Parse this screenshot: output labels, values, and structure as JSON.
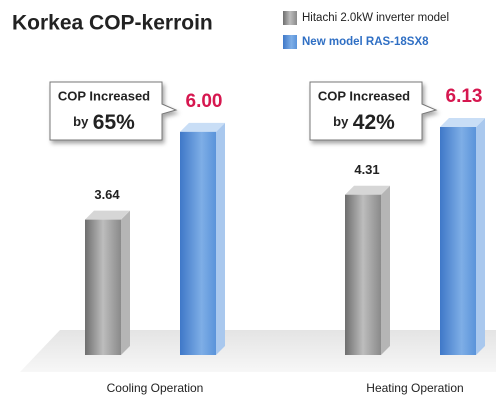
{
  "chart_data": {
    "type": "bar3d",
    "title": "Korkea COP-kerroin",
    "categories": [
      "Cooling Operation",
      "Heating Operation"
    ],
    "series": [
      {
        "name": "Hitachi 2.0kW inverter model",
        "color": "#8c8c8c",
        "values": [
          3.64,
          4.31
        ]
      },
      {
        "name": "New model RAS-18SX8",
        "color": "#4a86d4",
        "values": [
          6.0,
          6.13
        ],
        "value_labels": [
          "6.00",
          "6.13"
        ]
      }
    ],
    "annotations": [
      {
        "line1": "COP Increased",
        "by": "by",
        "percent": "65%"
      },
      {
        "line1": "COP Increased",
        "by": "by",
        "percent": "42%"
      }
    ],
    "legend": "top-right"
  }
}
